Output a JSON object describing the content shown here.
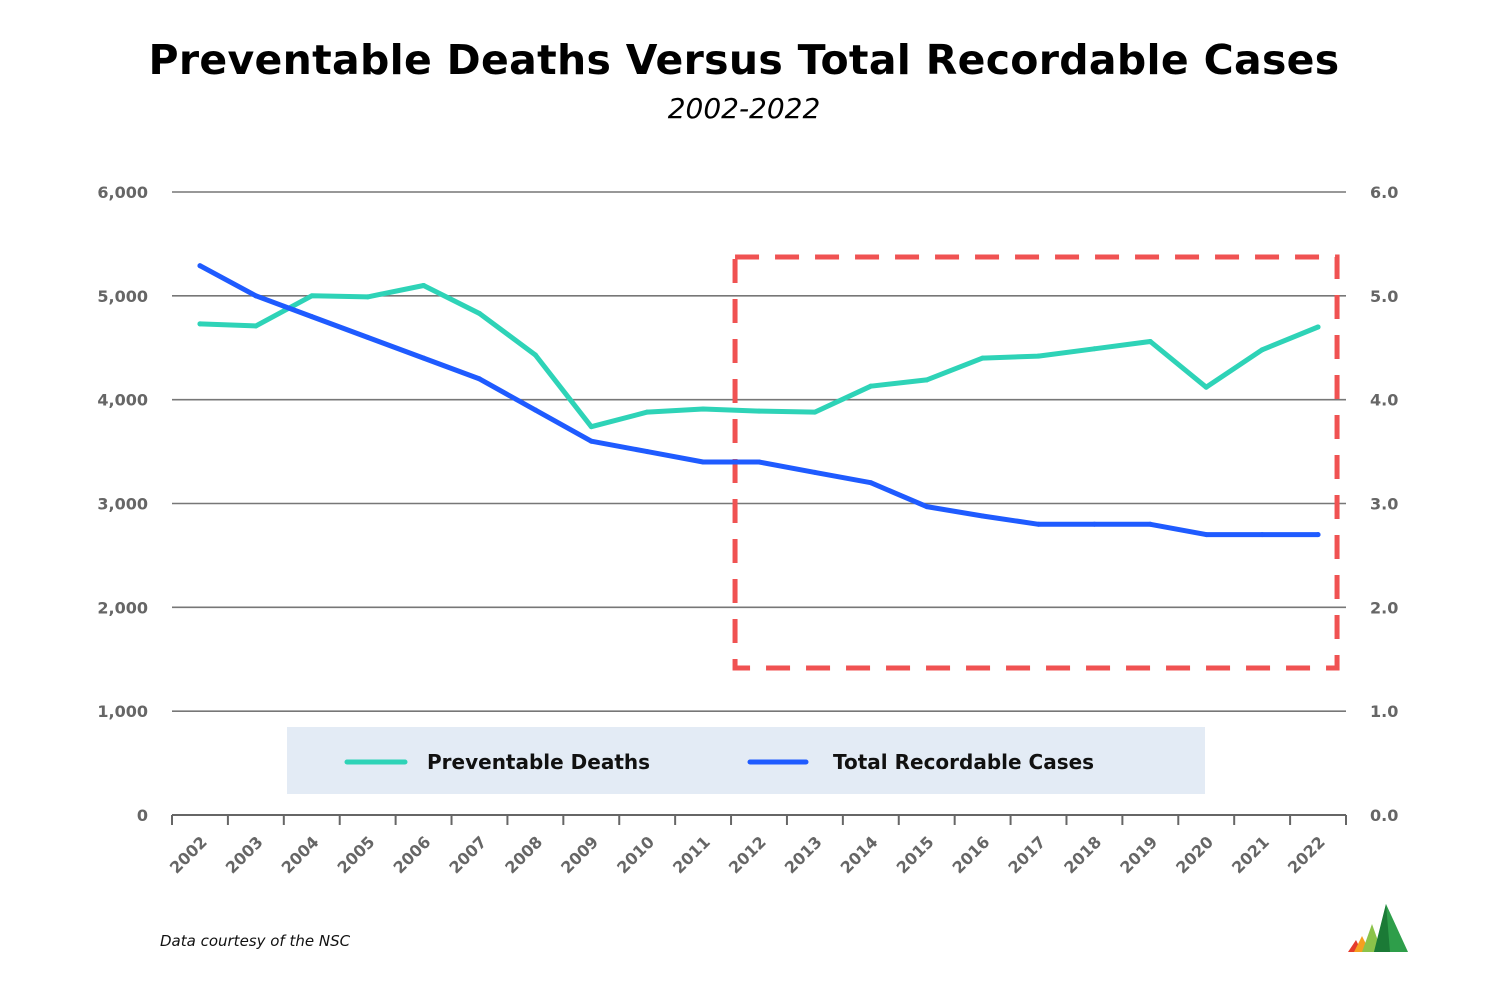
{
  "chart_data": {
    "type": "line",
    "title": "Preventable Deaths Versus Total Recordable Cases",
    "subtitle": "2002-2022",
    "categories": [
      "2002",
      "2003",
      "2004",
      "2005",
      "2006",
      "2007",
      "2008",
      "2009",
      "2010",
      "2011",
      "2012",
      "2013",
      "2014",
      "2015",
      "2016",
      "2017",
      "2018",
      "2019",
      "2020",
      "2021",
      "2022"
    ],
    "y_left": {
      "range": [
        0,
        6000
      ],
      "ticks": [
        "0",
        "1,000",
        "2,000",
        "3,000",
        "4,000",
        "5,000",
        "6,000"
      ]
    },
    "y_right": {
      "range": [
        0,
        6.0
      ],
      "ticks": [
        "0.0",
        "1.0",
        "2.0",
        "3.0",
        "4.0",
        "5.0",
        "6.0"
      ]
    },
    "grid": true,
    "legend_placement": "bottom",
    "series": [
      {
        "name": "Preventable Deaths",
        "axis": "left",
        "color": "#2ed3b7",
        "values": [
          4730,
          4710,
          5000,
          4990,
          5100,
          4830,
          4430,
          3740,
          3880,
          3910,
          3890,
          3880,
          4130,
          4190,
          4400,
          4420,
          4490,
          4560,
          4120,
          4480,
          4700
        ]
      },
      {
        "name": "Total Recordable Cases",
        "axis": "right",
        "color": "#1f5bff",
        "values": [
          5.29,
          5.0,
          4.8,
          4.6,
          4.4,
          4.2,
          3.9,
          3.6,
          3.5,
          3.4,
          3.4,
          3.3,
          3.2,
          2.97,
          2.88,
          2.8,
          2.8,
          2.8,
          2.7,
          2.7,
          2.7
        ]
      }
    ],
    "highlight": {
      "from": "2011",
      "to": "2022",
      "color": "#f05252",
      "style": "dashed"
    },
    "source_note": "Data courtesy of the NSC"
  }
}
